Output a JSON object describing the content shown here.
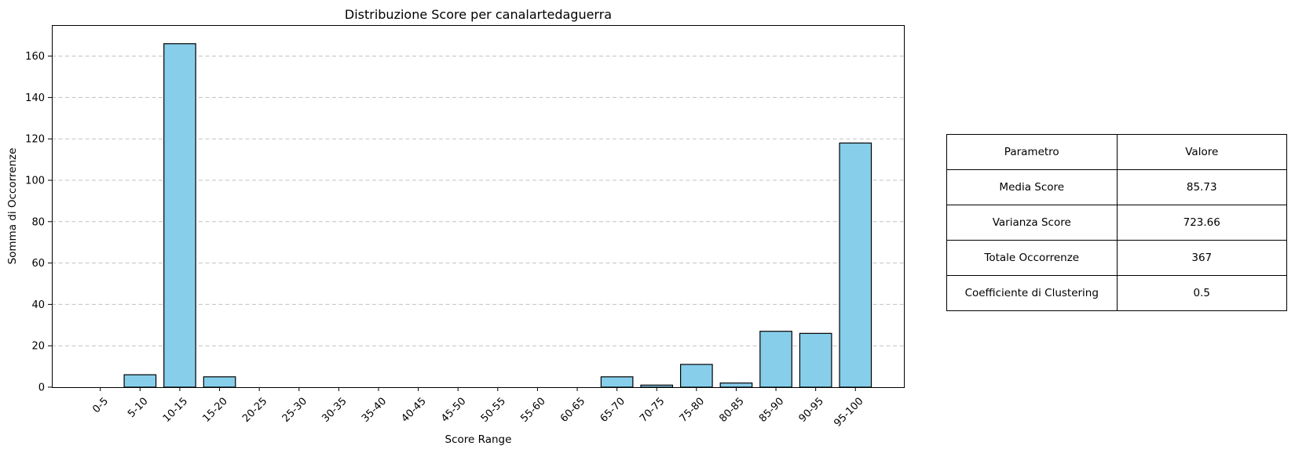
{
  "chart_data": {
    "type": "bar",
    "title": "Distribuzione Score per canalartedaguerra",
    "xlabel": "Score Range",
    "ylabel": "Somma di Occorrenze",
    "categories": [
      "0-5",
      "5-10",
      "10-15",
      "15-20",
      "20-25",
      "25-30",
      "30-35",
      "35-40",
      "40-45",
      "45-50",
      "50-55",
      "55-60",
      "60-65",
      "65-70",
      "70-75",
      "75-80",
      "80-85",
      "85-90",
      "90-95",
      "95-100"
    ],
    "values": [
      0,
      6,
      166,
      5,
      0,
      0,
      0,
      0,
      0,
      0,
      0,
      0,
      0,
      5,
      1,
      11,
      2,
      27,
      26,
      118
    ],
    "ylim": [
      0,
      175
    ],
    "yticks": [
      0,
      20,
      40,
      60,
      80,
      100,
      120,
      140,
      160
    ],
    "grid": "y-dashed",
    "bar_color": "#87CEEB",
    "edge_color": "#000000"
  },
  "table": {
    "header": [
      "Parametro",
      "Valore"
    ],
    "rows": [
      [
        "Media Score",
        "85.73"
      ],
      [
        "Varianza Score",
        "723.66"
      ],
      [
        "Totale Occorrenze",
        "367"
      ],
      [
        "Coefficiente di Clustering",
        "0.5"
      ]
    ]
  }
}
